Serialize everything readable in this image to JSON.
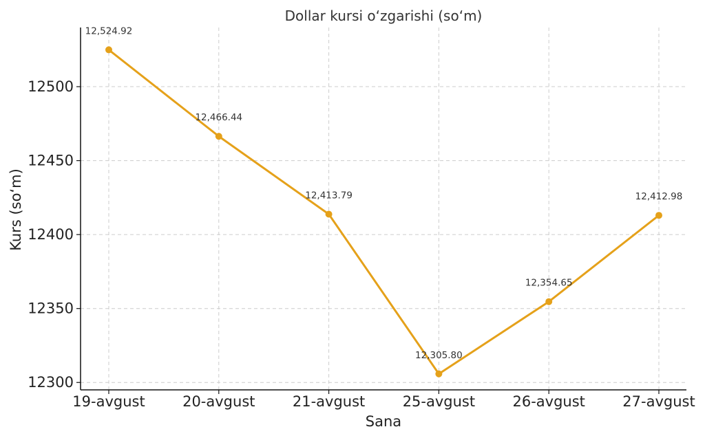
{
  "chart_data": {
    "type": "line",
    "title": "Dollar kursi o‘zgarishi (so‘m)",
    "xlabel": "Sana",
    "ylabel": "Kurs (so‘m)",
    "categories": [
      "19-avgust",
      "20-avgust",
      "21-avgust",
      "25-avgust",
      "26-avgust",
      "27-avgust"
    ],
    "values": [
      12524.92,
      12466.44,
      12413.79,
      12305.8,
      12354.65,
      12412.98
    ],
    "data_labels": [
      "12,524.92",
      "12,466.44",
      "12,413.79",
      "12,305.80",
      "12,354.65",
      "12,412.98"
    ],
    "yticks": [
      12300,
      12350,
      12400,
      12450,
      12500
    ],
    "ylim": [
      12295,
      12540
    ],
    "grid": true,
    "line_color": "#E5A11A",
    "marker": "circle"
  }
}
